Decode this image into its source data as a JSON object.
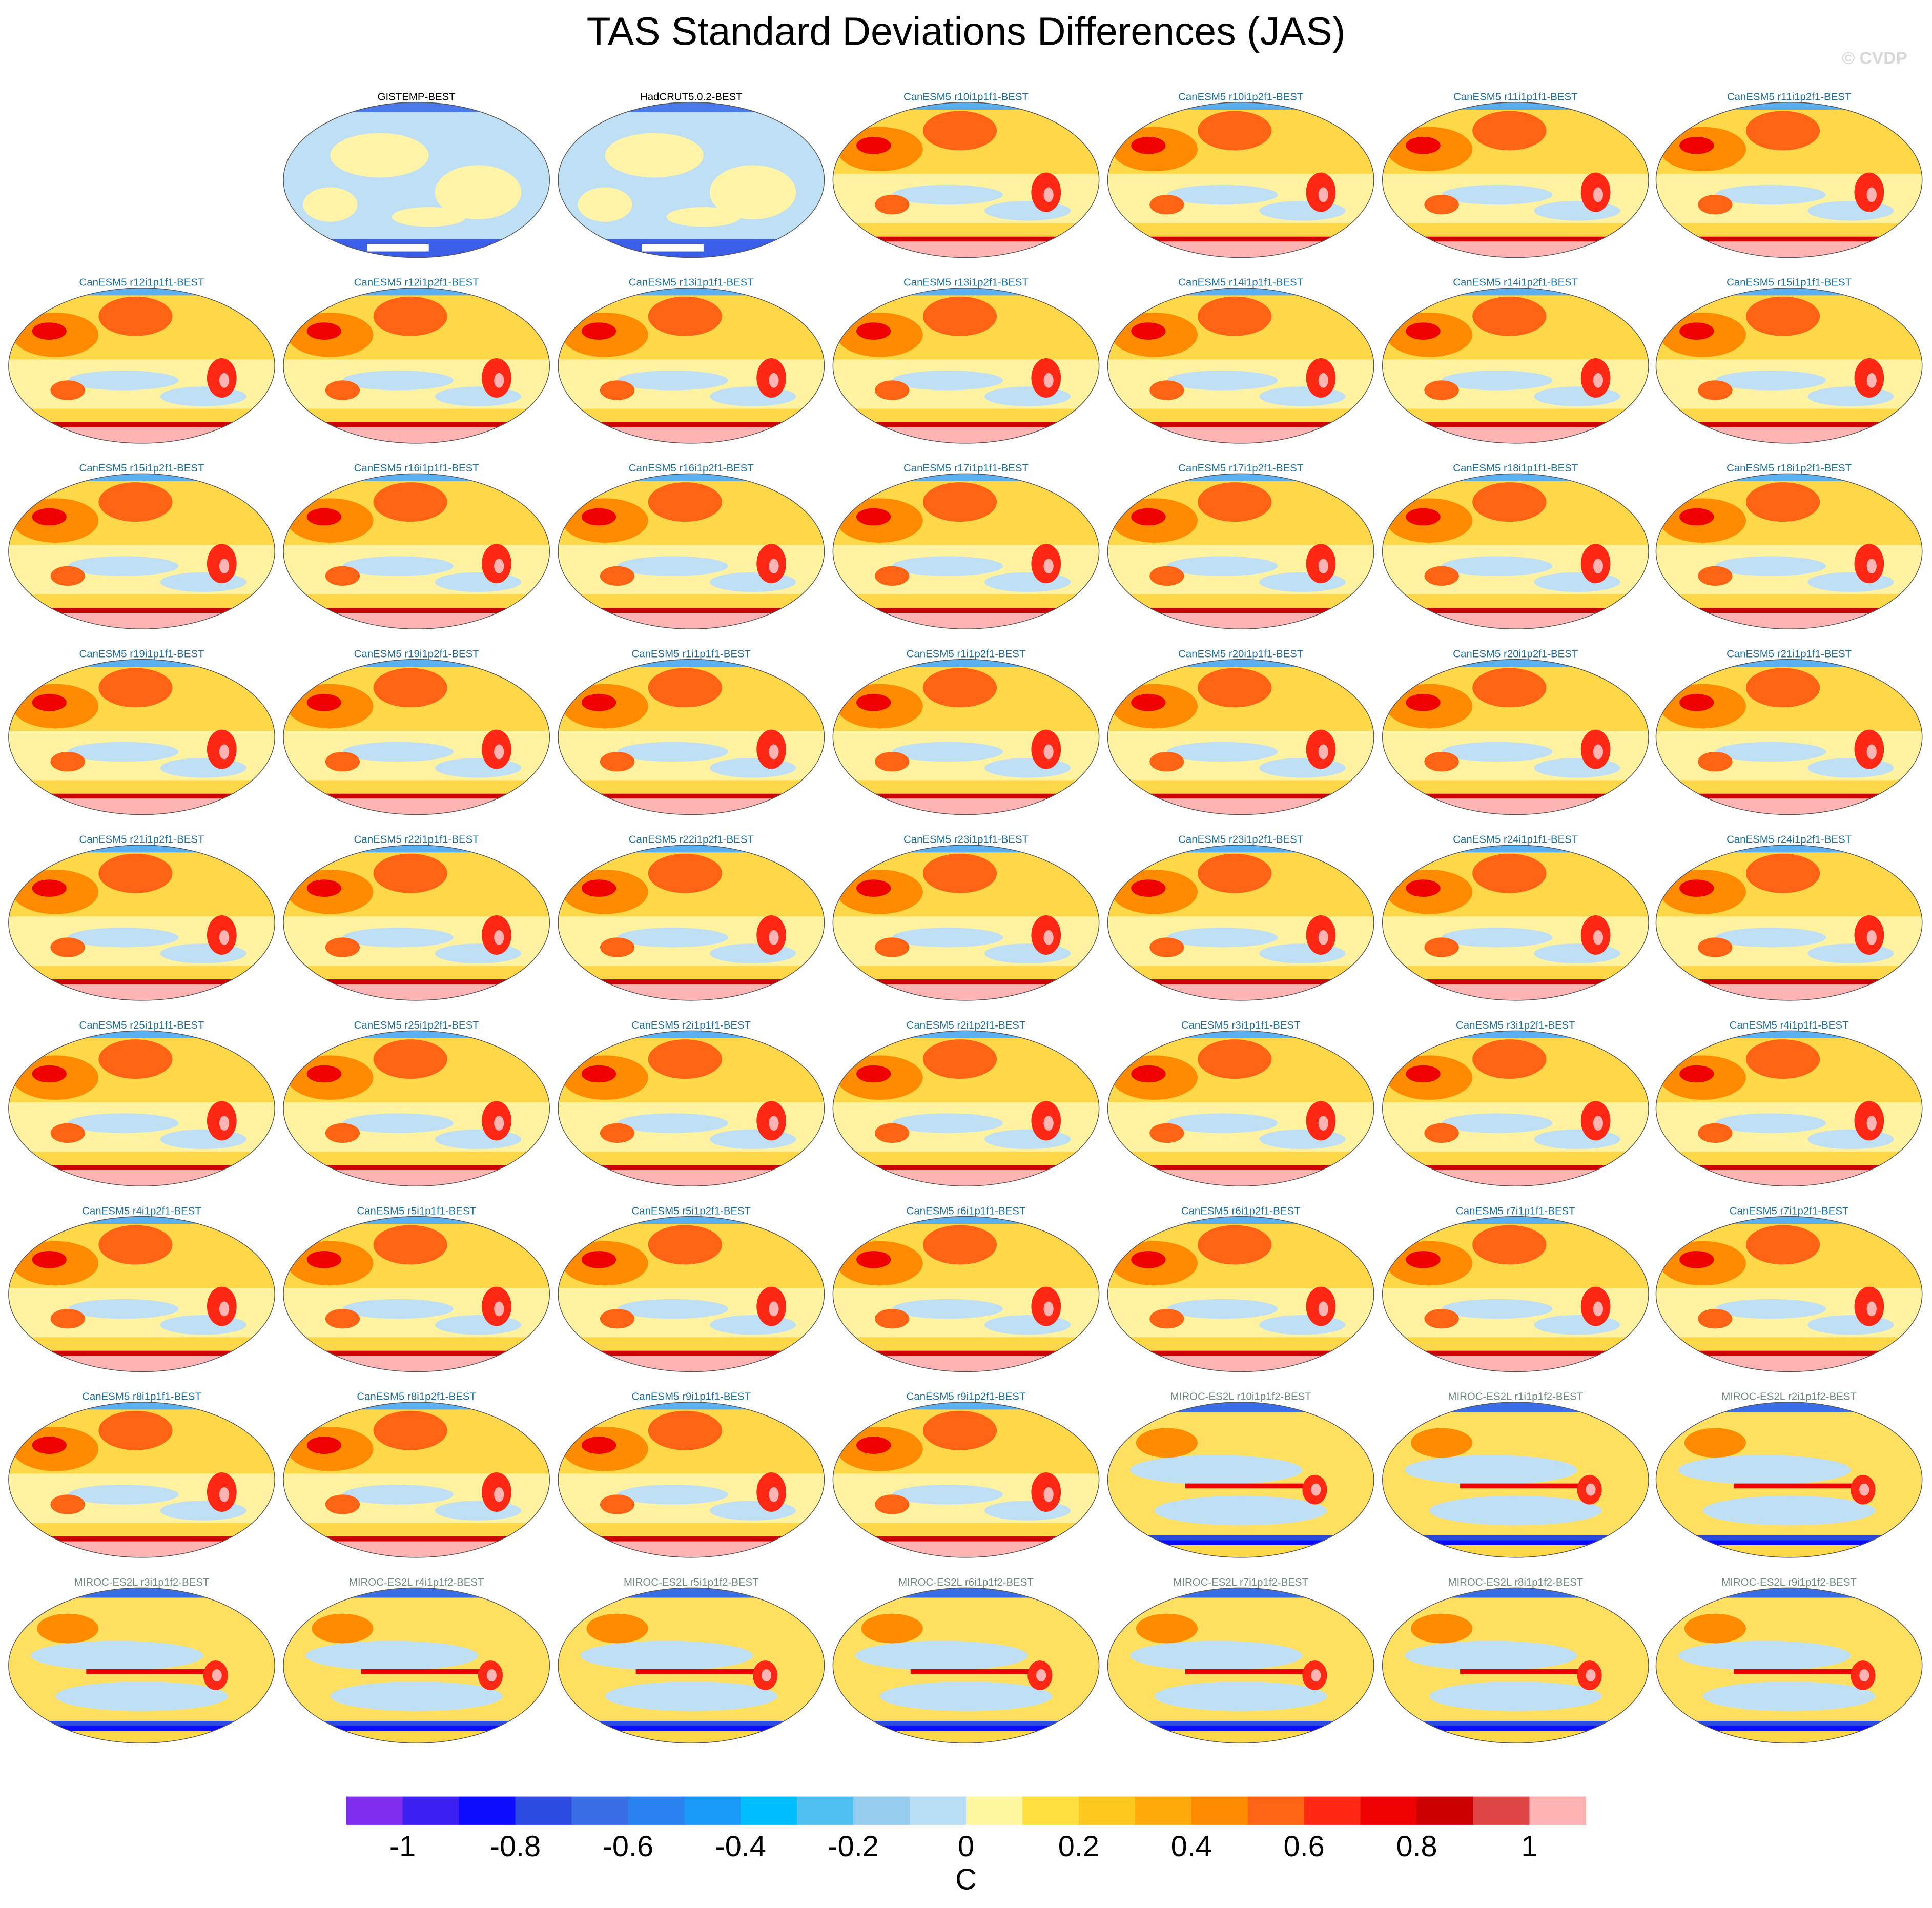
{
  "title": "TAS Standard Deviations Differences (JAS)",
  "watermark": "© CVDP",
  "panels": [
    {
      "label": "GISTEMP-BEST",
      "color": "#000000"
    },
    {
      "label": "HadCRUT5.0.2-BEST",
      "color": "#000000"
    },
    {
      "label": "CanESM5 r10i1p1f1-BEST",
      "color": "#1f6f9f"
    },
    {
      "label": "CanESM5 r10i1p2f1-BEST",
      "color": "#1f6f9f"
    },
    {
      "label": "CanESM5 r11i1p1f1-BEST",
      "color": "#1f6f9f"
    },
    {
      "label": "CanESM5 r11i1p2f1-BEST",
      "color": "#1f6f9f"
    },
    {
      "label": "CanESM5 r12i1p1f1-BEST",
      "color": "#1f6f9f"
    },
    {
      "label": "CanESM5 r12i1p2f1-BEST",
      "color": "#1f6f9f"
    },
    {
      "label": "CanESM5 r13i1p1f1-BEST",
      "color": "#1f6f9f"
    },
    {
      "label": "CanESM5 r13i1p2f1-BEST",
      "color": "#1f6f9f"
    },
    {
      "label": "CanESM5 r14i1p1f1-BEST",
      "color": "#1f6f9f"
    },
    {
      "label": "CanESM5 r14i1p2f1-BEST",
      "color": "#1f6f9f"
    },
    {
      "label": "CanESM5 r15i1p1f1-BEST",
      "color": "#1f6f9f"
    },
    {
      "label": "CanESM5 r15i1p2f1-BEST",
      "color": "#1f6f9f"
    },
    {
      "label": "CanESM5 r16i1p1f1-BEST",
      "color": "#1f6f9f"
    },
    {
      "label": "CanESM5 r16i1p2f1-BEST",
      "color": "#1f6f9f"
    },
    {
      "label": "CanESM5 r17i1p1f1-BEST",
      "color": "#1f6f9f"
    },
    {
      "label": "CanESM5 r17i1p2f1-BEST",
      "color": "#1f6f9f"
    },
    {
      "label": "CanESM5 r18i1p1f1-BEST",
      "color": "#1f6f9f"
    },
    {
      "label": "CanESM5 r18i1p2f1-BEST",
      "color": "#1f6f9f"
    },
    {
      "label": "CanESM5 r19i1p1f1-BEST",
      "color": "#1f6f9f"
    },
    {
      "label": "CanESM5 r19i1p2f1-BEST",
      "color": "#1f6f9f"
    },
    {
      "label": "CanESM5 r1i1p1f1-BEST",
      "color": "#1f6f9f"
    },
    {
      "label": "CanESM5 r1i1p2f1-BEST",
      "color": "#1f6f9f"
    },
    {
      "label": "CanESM5 r20i1p1f1-BEST",
      "color": "#1f6f9f"
    },
    {
      "label": "CanESM5 r20i1p2f1-BEST",
      "color": "#1f6f9f"
    },
    {
      "label": "CanESM5 r21i1p1f1-BEST",
      "color": "#1f6f9f"
    },
    {
      "label": "CanESM5 r21i1p2f1-BEST",
      "color": "#1f6f9f"
    },
    {
      "label": "CanESM5 r22i1p1f1-BEST",
      "color": "#1f6f9f"
    },
    {
      "label": "CanESM5 r22i1p2f1-BEST",
      "color": "#1f6f9f"
    },
    {
      "label": "CanESM5 r23i1p1f1-BEST",
      "color": "#1f6f9f"
    },
    {
      "label": "CanESM5 r23i1p2f1-BEST",
      "color": "#1f6f9f"
    },
    {
      "label": "CanESM5 r24i1p1f1-BEST",
      "color": "#1f6f9f"
    },
    {
      "label": "CanESM5 r24i1p2f1-BEST",
      "color": "#1f6f9f"
    },
    {
      "label": "CanESM5 r25i1p1f1-BEST",
      "color": "#1f6f9f"
    },
    {
      "label": "CanESM5 r25i1p2f1-BEST",
      "color": "#1f6f9f"
    },
    {
      "label": "CanESM5 r2i1p1f1-BEST",
      "color": "#1f6f9f"
    },
    {
      "label": "CanESM5 r2i1p2f1-BEST",
      "color": "#1f6f9f"
    },
    {
      "label": "CanESM5 r3i1p1f1-BEST",
      "color": "#1f6f9f"
    },
    {
      "label": "CanESM5 r3i1p2f1-BEST",
      "color": "#1f6f9f"
    },
    {
      "label": "CanESM5 r4i1p1f1-BEST",
      "color": "#1f6f9f"
    },
    {
      "label": "CanESM5 r4i1p2f1-BEST",
      "color": "#1f6f9f"
    },
    {
      "label": "CanESM5 r5i1p1f1-BEST",
      "color": "#1f6f9f"
    },
    {
      "label": "CanESM5 r5i1p2f1-BEST",
      "color": "#1f6f9f"
    },
    {
      "label": "CanESM5 r6i1p1f1-BEST",
      "color": "#1f6f9f"
    },
    {
      "label": "CanESM5 r6i1p2f1-BEST",
      "color": "#1f6f9f"
    },
    {
      "label": "CanESM5 r7i1p1f1-BEST",
      "color": "#1f6f9f"
    },
    {
      "label": "CanESM5 r7i1p2f1-BEST",
      "color": "#1f6f9f"
    },
    {
      "label": "CanESM5 r8i1p1f1-BEST",
      "color": "#1f6f9f"
    },
    {
      "label": "CanESM5 r8i1p2f1-BEST",
      "color": "#1f6f9f"
    },
    {
      "label": "CanESM5 r9i1p1f1-BEST",
      "color": "#1f6f9f"
    },
    {
      "label": "CanESM5 r9i1p2f1-BEST",
      "color": "#1f6f9f"
    },
    {
      "label": "MIROC-ES2L r10i1p1f2-BEST",
      "color": "#6f8a7c"
    },
    {
      "label": "MIROC-ES2L r1i1p1f2-BEST",
      "color": "#6f8a7c"
    },
    {
      "label": "MIROC-ES2L r2i1p1f2-BEST",
      "color": "#6f8a7c"
    },
    {
      "label": "MIROC-ES2L r3i1p1f2-BEST",
      "color": "#6f8a7c"
    },
    {
      "label": "MIROC-ES2L r4i1p1f2-BEST",
      "color": "#6f8a7c"
    },
    {
      "label": "MIROC-ES2L r5i1p1f2-BEST",
      "color": "#6f8a7c"
    },
    {
      "label": "MIROC-ES2L r6i1p1f2-BEST",
      "color": "#6f8a7c"
    },
    {
      "label": "MIROC-ES2L r7i1p1f2-BEST",
      "color": "#6f8a7c"
    },
    {
      "label": "MIROC-ES2L r8i1p1f2-BEST",
      "color": "#6f8a7c"
    },
    {
      "label": "MIROC-ES2L r9i1p1f2-BEST",
      "color": "#6f8a7c"
    }
  ],
  "colorbar": {
    "lim": [
      -1.1,
      1.1
    ],
    "ticks": [
      -1,
      -0.8,
      -0.6,
      -0.4,
      -0.2,
      0,
      0.2,
      0.4,
      0.6,
      0.8,
      1
    ],
    "label": "C",
    "colors": [
      "#7f2ef0",
      "#3a1ff0",
      "#0a0aff",
      "#2a4ae0",
      "#3a6ee6",
      "#2a82f0",
      "#1a9af8",
      "#00bfff",
      "#50c0f0",
      "#96cdee",
      "#b8def5",
      "#fff8a0",
      "#ffe040",
      "#ffc81e",
      "#ffaa0a",
      "#ff8c00",
      "#ff6414",
      "#ff2814",
      "#ee0000",
      "#cc0000",
      "#dd4444",
      "#ffb4b4"
    ]
  }
}
